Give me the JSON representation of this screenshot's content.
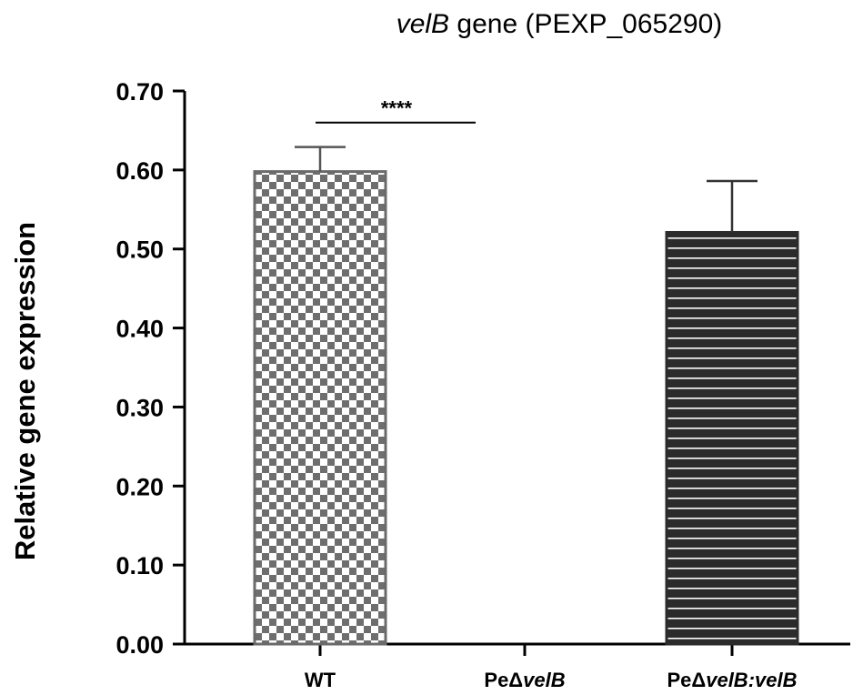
{
  "chart_data": {
    "type": "bar",
    "title": {
      "italic": "velB",
      "rest": " gene (PEXP_065290)"
    },
    "ylabel": "Relative gene expression",
    "xlabel": "",
    "ylim": [
      0,
      0.7
    ],
    "yticks": [
      "0.00",
      "0.10",
      "0.20",
      "0.30",
      "0.40",
      "0.50",
      "0.60",
      "0.70"
    ],
    "categories": [
      {
        "plain": "WT",
        "italic": ""
      },
      {
        "plain": "PeΔ",
        "italic": "velB"
      },
      {
        "plain": "PeΔ",
        "italic": "velB:velB"
      }
    ],
    "values": [
      0.598,
      0.0,
      0.521
    ],
    "errors": [
      0.031,
      0.0,
      0.065
    ],
    "patterns": [
      "checkered",
      "none",
      "horizontal-stripes"
    ],
    "significance": {
      "label": "****",
      "from": 0,
      "to": 1,
      "y": 0.66
    },
    "grid": false,
    "legend": "none"
  }
}
